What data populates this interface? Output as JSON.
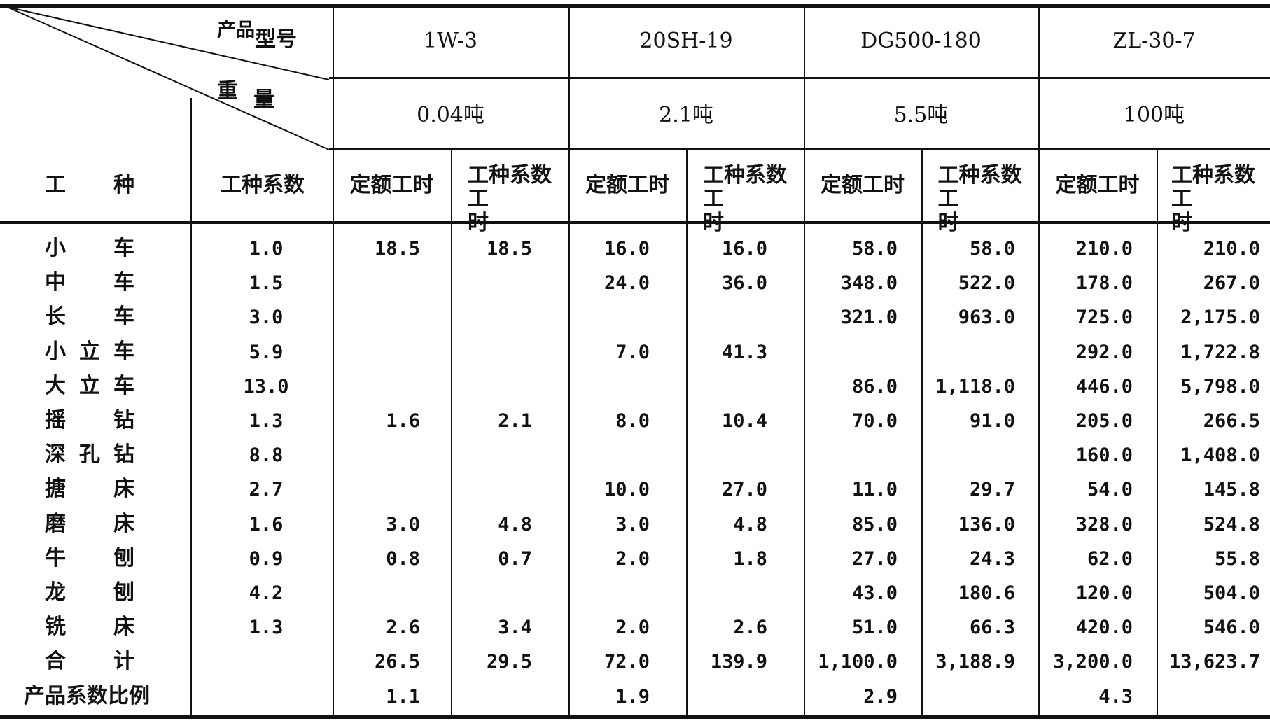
{
  "header": {
    "corner_model": "产品型号",
    "corner_model_a": "产品",
    "corner_model_b": "型号",
    "corner_weight": "重 量",
    "corner_weight_a": "重",
    "corner_weight_b": "量",
    "col_worktype": "工 种",
    "col_worktype_a": "工",
    "col_worktype_b": "种",
    "col_coef": "工种系数",
    "quota_label": "定额工时",
    "coef_hours_label": "工种系数工 时",
    "coef_hours_line1": "工种系数",
    "coef_hours_line2a": "工",
    "coef_hours_line2b": "时",
    "products": [
      {
        "model": "1W-3",
        "weight": "0.04吨"
      },
      {
        "model": "20SH-19",
        "weight": "2.1吨"
      },
      {
        "model": "DG500-180",
        "weight": "5.5吨"
      },
      {
        "model": "ZL-30-7",
        "weight": "100吨"
      }
    ]
  },
  "rows": [
    {
      "name": "小 车",
      "coef": "1.0",
      "cells": [
        "18.5",
        "18.5",
        "16.0",
        "16.0",
        "58.0",
        "58.0",
        "210.0",
        "210.0"
      ]
    },
    {
      "name": "中 车",
      "coef": "1.5",
      "cells": [
        "",
        "",
        "24.0",
        "36.0",
        "348.0",
        "522.0",
        "178.0",
        "267.0"
      ]
    },
    {
      "name": "长 车",
      "coef": "3.0",
      "cells": [
        "",
        "",
        "",
        "",
        "321.0",
        "963.0",
        "725.0",
        "2,175.0"
      ]
    },
    {
      "name": "小立车",
      "coef": "5.9",
      "cells": [
        "",
        "",
        "7.0",
        "41.3",
        "",
        "",
        "292.0",
        "1,722.8"
      ]
    },
    {
      "name": "大立车",
      "coef": "13.0",
      "cells": [
        "",
        "",
        "",
        "",
        "86.0",
        "1,118.0",
        "446.0",
        "5,798.0"
      ]
    },
    {
      "name": "摇 钻",
      "coef": "1.3",
      "cells": [
        "1.6",
        "2.1",
        "8.0",
        "10.4",
        "70.0",
        "91.0",
        "205.0",
        "266.5"
      ]
    },
    {
      "name": "深孔钻",
      "coef": "8.8",
      "cells": [
        "",
        "",
        "",
        "",
        "",
        "",
        "160.0",
        "1,408.0"
      ]
    },
    {
      "name": "搪 床",
      "coef": "2.7",
      "cells": [
        "",
        "",
        "10.0",
        "27.0",
        "11.0",
        "29.7",
        "54.0",
        "145.8"
      ]
    },
    {
      "name": "磨 床",
      "coef": "1.6",
      "cells": [
        "3.0",
        "4.8",
        "3.0",
        "4.8",
        "85.0",
        "136.0",
        "328.0",
        "524.8"
      ]
    },
    {
      "name": "牛 刨",
      "coef": "0.9",
      "cells": [
        "0.8",
        "0.7",
        "2.0",
        "1.8",
        "27.0",
        "24.3",
        "62.0",
        "55.8"
      ]
    },
    {
      "name": "龙 刨",
      "coef": "4.2",
      "cells": [
        "",
        "",
        "",
        "",
        "43.0",
        "180.6",
        "120.0",
        "504.0"
      ]
    },
    {
      "name": "铣 床",
      "coef": "1.3",
      "cells": [
        "2.6",
        "3.4",
        "2.0",
        "2.6",
        "51.0",
        "66.3",
        "420.0",
        "546.0"
      ]
    },
    {
      "name": "合 计",
      "coef": "",
      "cells": [
        "26.5",
        "29.5",
        "72.0",
        "139.9",
        "1,100.0",
        "3,188.9",
        "3,200.0",
        "13,623.7"
      ]
    },
    {
      "name": "产品系数比例",
      "coef": "",
      "cells": [
        "1.1",
        "",
        "1.9",
        "",
        "2.9",
        "",
        "4.3",
        ""
      ]
    }
  ]
}
